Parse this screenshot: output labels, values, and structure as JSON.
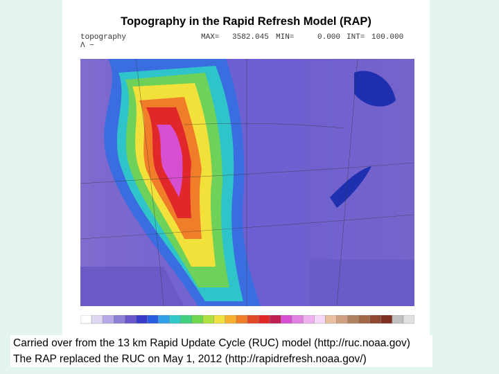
{
  "title": "Topography in the Rapid Refresh Model (RAP)",
  "header": {
    "field": "topography",
    "units": "Λ −",
    "max_label": "MAX=",
    "max": "3582.045",
    "min_label": "MIN=",
    "min": "0.000",
    "int_label": "INT=",
    "int": "100.000"
  },
  "caption": {
    "lines": [
      "Carried over from the 13 km Rapid Update Cycle (RUC) model (http://ruc.noaa.gov)",
      "The RAP replaced the RUC on May 1, 2012 (http://rapidrefresh.noaa.gov/)"
    ]
  }
}
